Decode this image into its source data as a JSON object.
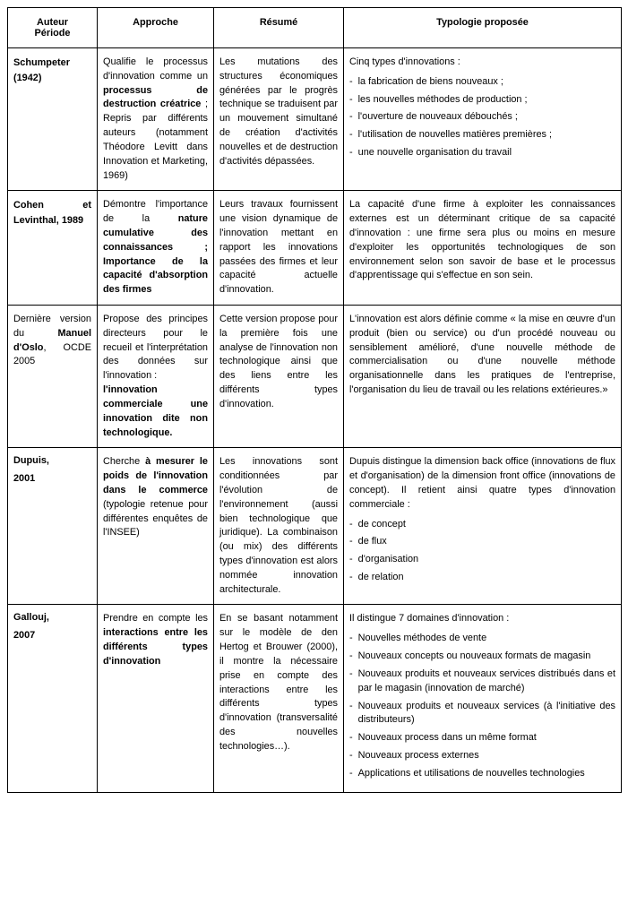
{
  "headers": {
    "col1a": "Auteur",
    "col1b": "Période",
    "col2": "Approche",
    "col3": "Résumé",
    "col4": "Typologie proposée"
  },
  "rows": [
    {
      "auteur": "Schumpeter (1942)",
      "approche_pre": "Qualifie le processus d'innovation comme un ",
      "approche_bold": "processus de destruction créatrice",
      "approche_post": " ; Repris par différents auteurs (notamment Théodore Levitt dans Innovation et Marketing, 1969)",
      "resume": "Les mutations des structures économiques générées par le progrès technique se traduisent par un mouvement simultané de création d'activités nouvelles et de destruction d'activités dépassées.",
      "typo_intro": "Cinq types d'innovations :",
      "typo_items": [
        "la fabrication de biens nouveaux ;",
        "les nouvelles méthodes de production ;",
        "l'ouverture de nouveaux débouchés ;",
        "l'utilisation de nouvelles matières premières ;",
        "une nouvelle organisation du travail"
      ]
    },
    {
      "auteur_html": "Cohen et Levinthal, 1989",
      "approche_pre": "Démontre l'importance de la ",
      "approche_bold": "nature cumulative des connaissances ; Importance de la capacité d'absorption des firmes",
      "approche_post": "",
      "resume": "Leurs travaux fournissent une vision dynamique de l'innovation mettant en rapport les innovations passées des firmes et leur capacité actuelle d'innovation.",
      "typo": "La capacité d'une firme à exploiter les connaissances externes est un déterminant critique de sa capacité d'innovation : une firme sera plus ou moins en mesure d'exploiter les opportunités technologiques de son environnement selon son savoir de base et le processus d'apprentissage qui s'effectue en son sein."
    },
    {
      "auteur_pre": "Dernière version du ",
      "auteur_bold": "Manuel d'Oslo",
      "auteur_post": ", OCDE 2005",
      "approche_pre": "Propose des principes directeurs pour le recueil et l'interprétation des données sur l'innovation : ",
      "approche_bold": "l'innovation commerciale une innovation dite non technologique.",
      "approche_post": "",
      "resume": "Cette version propose pour la première fois une analyse de l'innovation non technologique ainsi que des liens entre les différents types d'innovation.",
      "typo": "L'innovation est alors définie comme « la mise en œuvre d'un produit (bien ou service) ou d'un procédé nouveau ou sensiblement amélioré, d'une nouvelle méthode de commercialisation ou d'une nouvelle méthode organisationnelle dans les pratiques de l'entreprise, l'organisation du lieu de travail ou les relations extérieures.»"
    },
    {
      "auteur": "Dupuis,",
      "auteur2": "2001",
      "approche_pre": "Cherche ",
      "approche_bold": "à mesurer le poids de l'innovation dans le commerce",
      "approche_post": " (typologie retenue pour différentes enquêtes de l'INSEE)",
      "resume": "Les innovations sont conditionnées par l'évolution de l'environnement (aussi bien technologique que juridique). La combinaison (ou mix) des différents types d'innovation est alors nommée innovation architecturale.",
      "typo_intro": "Dupuis distingue la dimension back office (innovations de flux et d'organisation) de la dimension front office (innovations de concept). Il retient ainsi quatre types d'innovation commerciale :",
      "typo_items": [
        "de concept",
        "de flux",
        "d'organisation",
        "de relation"
      ]
    },
    {
      "auteur": "Gallouj,",
      "auteur2": "2007",
      "approche_pre": "Prendre en compte les ",
      "approche_bold": "interactions entre les différents types d'innovation",
      "approche_post": "",
      "resume": "En se basant notamment sur le modèle de den Hertog et Brouwer (2000), il montre la nécessaire prise en compte des interactions entre les différents types d'innovation (transversalité des nouvelles technologies…).",
      "typo_intro": "Il distingue 7 domaines d'innovation :",
      "typo_items": [
        "Nouvelles méthodes de vente",
        "Nouveaux concepts ou nouveaux formats de magasin",
        "Nouveaux produits et nouveaux services distribués dans et par le magasin (innovation de marché)",
        "Nouveaux produits et nouveaux services (à l'initiative des distributeurs)",
        "Nouveaux process dans un même format",
        "Nouveaux process externes",
        "Applications et utilisations de nouvelles technologies"
      ]
    }
  ]
}
